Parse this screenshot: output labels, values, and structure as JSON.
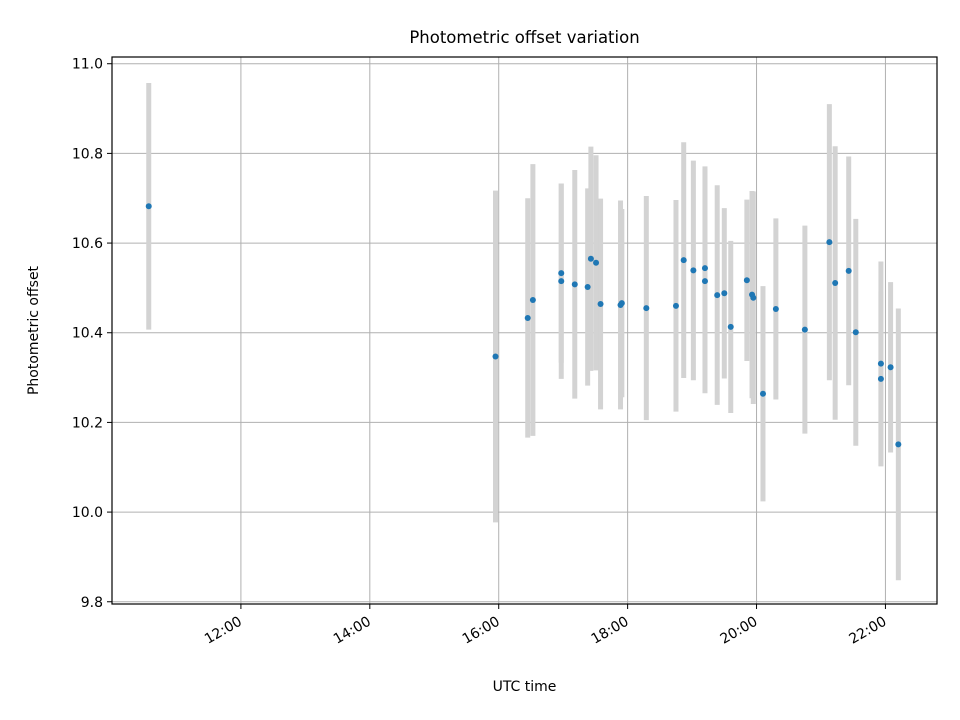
{
  "chart_data": {
    "type": "scatter",
    "title": "Photometric offset variation",
    "xlabel": "UTC time",
    "ylabel": "Photometric offset",
    "x_unit": "hour_utc",
    "x_ticks": [
      {
        "value": 12,
        "label": "12:00"
      },
      {
        "value": 14,
        "label": "14:00"
      },
      {
        "value": 16,
        "label": "16:00"
      },
      {
        "value": 18,
        "label": "18:00"
      },
      {
        "value": 20,
        "label": "20:00"
      },
      {
        "value": 22,
        "label": "22:00"
      }
    ],
    "y_ticks": [
      {
        "value": 9.8,
        "label": "9.8"
      },
      {
        "value": 10.0,
        "label": "10.0"
      },
      {
        "value": 10.2,
        "label": "10.2"
      },
      {
        "value": 10.4,
        "label": "10.4"
      },
      {
        "value": 10.6,
        "label": "10.6"
      },
      {
        "value": 10.8,
        "label": "10.8"
      },
      {
        "value": 11.0,
        "label": "11.0"
      }
    ],
    "xlim": [
      10.0,
      22.8
    ],
    "ylim": [
      9.795,
      11.015
    ],
    "grid": true,
    "colors": {
      "points": "#1f77b4",
      "errorbars": "#d3d3d3",
      "grid": "#b0b0b0"
    },
    "points": [
      {
        "x": 10.57,
        "y": 10.682,
        "err": 0.275
      },
      {
        "x": 15.95,
        "y": 10.347,
        "err": 0.37
      },
      {
        "x": 16.45,
        "y": 10.433,
        "err": 0.267
      },
      {
        "x": 16.53,
        "y": 10.473,
        "err": 0.303
      },
      {
        "x": 16.97,
        "y": 10.533,
        "err": 0.2
      },
      {
        "x": 16.97,
        "y": 10.515,
        "err": 0.218
      },
      {
        "x": 17.18,
        "y": 10.508,
        "err": 0.255
      },
      {
        "x": 17.38,
        "y": 10.502,
        "err": 0.22
      },
      {
        "x": 17.43,
        "y": 10.565,
        "err": 0.25
      },
      {
        "x": 17.51,
        "y": 10.556,
        "err": 0.24
      },
      {
        "x": 17.58,
        "y": 10.464,
        "err": 0.235
      },
      {
        "x": 17.89,
        "y": 10.462,
        "err": 0.233
      },
      {
        "x": 17.91,
        "y": 10.466,
        "err": 0.21
      },
      {
        "x": 18.29,
        "y": 10.455,
        "err": 0.25
      },
      {
        "x": 18.75,
        "y": 10.46,
        "err": 0.236
      },
      {
        "x": 18.87,
        "y": 10.562,
        "err": 0.263
      },
      {
        "x": 19.02,
        "y": 10.539,
        "err": 0.245
      },
      {
        "x": 19.2,
        "y": 10.544,
        "err": 0.227
      },
      {
        "x": 19.2,
        "y": 10.515,
        "err": 0.25
      },
      {
        "x": 19.39,
        "y": 10.484,
        "err": 0.245
      },
      {
        "x": 19.5,
        "y": 10.488,
        "err": 0.19
      },
      {
        "x": 19.6,
        "y": 10.413,
        "err": 0.192
      },
      {
        "x": 19.85,
        "y": 10.517,
        "err": 0.18
      },
      {
        "x": 19.93,
        "y": 10.485,
        "err": 0.231
      },
      {
        "x": 19.95,
        "y": 10.478,
        "err": 0.237
      },
      {
        "x": 20.1,
        "y": 10.264,
        "err": 0.24
      },
      {
        "x": 20.3,
        "y": 10.453,
        "err": 0.202
      },
      {
        "x": 20.75,
        "y": 10.407,
        "err": 0.232
      },
      {
        "x": 21.13,
        "y": 10.602,
        "err": 0.308
      },
      {
        "x": 21.22,
        "y": 10.511,
        "err": 0.305
      },
      {
        "x": 21.43,
        "y": 10.538,
        "err": 0.255
      },
      {
        "x": 21.54,
        "y": 10.401,
        "err": 0.253
      },
      {
        "x": 21.93,
        "y": 10.297,
        "err": 0.195
      },
      {
        "x": 21.93,
        "y": 10.331,
        "err": 0.228
      },
      {
        "x": 22.08,
        "y": 10.323,
        "err": 0.19
      },
      {
        "x": 22.2,
        "y": 10.151,
        "err": 0.303
      }
    ]
  }
}
